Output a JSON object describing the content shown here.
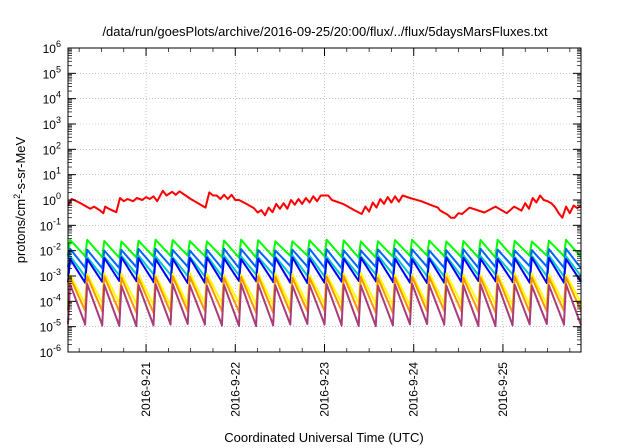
{
  "chart_data": {
    "type": "line",
    "title": "/data/run/goesPlots/archive/2016-09-25/20:00/flux/../flux/5daysMarsFluxes.txt",
    "xlabel": "Coordinated Universal Time (UTC)",
    "ylabel": "protons/cm²-s-sr-MeV",
    "y_scale": "log",
    "ylim": [
      1e-06,
      1000000.0
    ],
    "xlim": [
      "2016-09-20 03:00",
      "2016-09-25 21:00"
    ],
    "grid": true,
    "legend": "none",
    "y_tick_labels": [
      "10-6",
      "10-5",
      "10-4",
      "10-3",
      "10-2",
      "10-1",
      "100",
      "101",
      "102",
      "103",
      "104",
      "105",
      "106"
    ],
    "x_tick_labels": [
      "2016-9-21",
      "2016-9-22",
      "2016-9-23",
      "2016-9-24",
      "2016-9-25"
    ],
    "sawtooth_teeth_per_series": 30,
    "series": [
      {
        "color": "#ff0000",
        "x": [
          "2016-09-20 03:00",
          "2016-09-20 04:00",
          "2016-09-20 06:00",
          "2016-09-20 07:30",
          "2016-09-20 09:00",
          "2016-09-20 10:00",
          "2016-09-20 11:30",
          "2016-09-20 12:30",
          "2016-09-20 13:00",
          "2016-09-20 14:00",
          "2016-09-20 16:00",
          "2016-09-20 17:00",
          "2016-09-20 18:00",
          "2016-09-20 19:00",
          "2016-09-20 20:30",
          "2016-09-20 21:30",
          "2016-09-20 23:00",
          "2016-09-21 00:00",
          "2016-09-21 01:00",
          "2016-09-21 02:00",
          "2016-09-21 03:00",
          "2016-09-21 04:30",
          "2016-09-21 05:30",
          "2016-09-21 07:00",
          "2016-09-21 08:00",
          "2016-09-21 09:00",
          "2016-09-21 12:00",
          "2016-09-21 14:00",
          "2016-09-21 16:00",
          "2016-09-21 17:00",
          "2016-09-21 18:00",
          "2016-09-21 19:00",
          "2016-09-21 20:00",
          "2016-09-21 21:00",
          "2016-09-21 22:00",
          "2016-09-21 23:00",
          "2016-09-22 00:00",
          "2016-09-22 01:00",
          "2016-09-22 03:00",
          "2016-09-22 05:00",
          "2016-09-22 06:00",
          "2016-09-22 07:00",
          "2016-09-22 08:00",
          "2016-09-22 09:00",
          "2016-09-22 10:00",
          "2016-09-22 11:00",
          "2016-09-22 12:00",
          "2016-09-22 13:00",
          "2016-09-22 14:00",
          "2016-09-22 15:00",
          "2016-09-22 16:00",
          "2016-09-22 17:00",
          "2016-09-22 18:00",
          "2016-09-22 19:00",
          "2016-09-22 20:00",
          "2016-09-22 21:00",
          "2016-09-22 22:00",
          "2016-09-22 23:00",
          "2016-09-23 00:00",
          "2016-09-23 01:00",
          "2016-09-23 02:00",
          "2016-09-23 05:00",
          "2016-09-23 08:00",
          "2016-09-23 10:00",
          "2016-09-23 11:00",
          "2016-09-23 12:00",
          "2016-09-23 13:00",
          "2016-09-23 14:00",
          "2016-09-23 15:00",
          "2016-09-23 16:00",
          "2016-09-23 17:00",
          "2016-09-23 18:00",
          "2016-09-23 19:00",
          "2016-09-23 20:00",
          "2016-09-23 21:00",
          "2016-09-23 23:00",
          "2016-09-24 02:00",
          "2016-09-24 05:00",
          "2016-09-24 06:30",
          "2016-09-24 07:00",
          "2016-09-24 08:00",
          "2016-09-24 09:00",
          "2016-09-24 10:00",
          "2016-09-24 11:00",
          "2016-09-24 12:00",
          "2016-09-24 13:00",
          "2016-09-24 15:00",
          "2016-09-24 19:00",
          "2016-09-24 22:00",
          "2016-09-25 01:00",
          "2016-09-25 03:00",
          "2016-09-25 05:00",
          "2016-09-25 06:00",
          "2016-09-25 07:00",
          "2016-09-25 08:00",
          "2016-09-25 09:00",
          "2016-09-25 10:00",
          "2016-09-25 11:00",
          "2016-09-25 12:00",
          "2016-09-25 13:00",
          "2016-09-25 14:00",
          "2016-09-25 15:00",
          "2016-09-25 16:00",
          "2016-09-25 17:00",
          "2016-09-25 18:00",
          "2016-09-25 19:00",
          "2016-09-25 20:00",
          "2016-09-25 21:00"
        ],
        "values": [
          0.6,
          1.1,
          0.8,
          0.6,
          0.45,
          0.55,
          0.4,
          0.3,
          0.55,
          0.45,
          0.33,
          1.2,
          0.9,
          1.1,
          0.9,
          1.2,
          1.0,
          1.3,
          1.1,
          1.4,
          0.9,
          2.3,
          1.5,
          2.1,
          1.6,
          2.2,
          1.1,
          0.75,
          0.5,
          2.0,
          1.5,
          1.5,
          1.1,
          1.6,
          1.1,
          1.6,
          1.0,
          1.0,
          0.7,
          0.48,
          0.32,
          0.4,
          0.25,
          0.5,
          0.33,
          0.7,
          0.45,
          0.75,
          0.45,
          1.0,
          0.65,
          1.1,
          0.7,
          1.2,
          0.8,
          1.4,
          0.9,
          1.5,
          1.5,
          1.5,
          1.0,
          0.7,
          0.4,
          0.28,
          0.55,
          0.35,
          0.8,
          0.5,
          1.1,
          0.7,
          1.3,
          0.8,
          1.4,
          0.85,
          1.5,
          1.2,
          0.9,
          0.6,
          0.5,
          0.4,
          0.32,
          0.27,
          0.2,
          0.2,
          0.3,
          0.28,
          0.5,
          0.32,
          0.55,
          0.3,
          0.55,
          0.38,
          0.75,
          0.45,
          1.2,
          0.8,
          1.5,
          1.0,
          0.9,
          0.75,
          0.52,
          0.3,
          0.2,
          0.55,
          0.3,
          0.6,
          0.48,
          0.6
        ]
      },
      {
        "color": "#00ff00",
        "tooth_peak": 0.025,
        "tooth_floor": 0.006
      },
      {
        "color": "#0064ff",
        "tooth_peak": 0.011,
        "tooth_floor": 0.0023
      },
      {
        "color": "#00c8c8",
        "tooth_peak": 0.006,
        "tooth_floor": 0.0011
      },
      {
        "color": "#0000ff",
        "tooth_peak": 0.005,
        "tooth_floor": 0.0006
      },
      {
        "color": "#ffff00",
        "tooth_peak": 0.0012,
        "tooth_floor": 8e-05
      },
      {
        "color": "#ff9600",
        "tooth_peak": 0.0009,
        "tooth_floor": 4e-05
      },
      {
        "color": "#aa3c78",
        "tooth_peak": 0.00045,
        "tooth_floor": 1.2e-05
      }
    ]
  }
}
